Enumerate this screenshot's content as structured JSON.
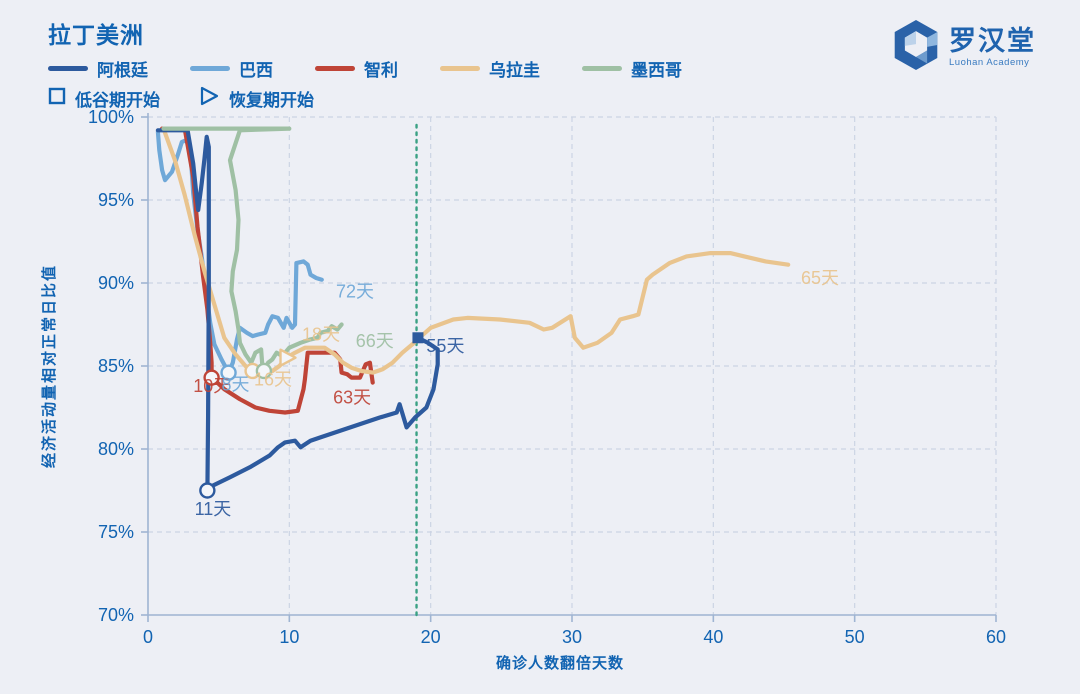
{
  "header": {
    "title": "拉丁美洲",
    "logo": {
      "name": "罗汉堂",
      "subtitle": "Luohan Academy"
    }
  },
  "legend": {
    "series": [
      {
        "label": "阿根廷",
        "color": "#2d5a9e"
      },
      {
        "label": "巴西",
        "color": "#6fa8d8"
      },
      {
        "label": "智利",
        "color": "#bf4437"
      },
      {
        "label": "乌拉圭",
        "color": "#e9c48e"
      },
      {
        "label": "墨西哥",
        "color": "#9fc0a4"
      }
    ],
    "markers": [
      {
        "label": "低谷期开始",
        "shape": "square"
      },
      {
        "label": "恢复期开始",
        "shape": "triangle"
      }
    ]
  },
  "chart_data": {
    "type": "line",
    "title": "拉丁美洲",
    "xlabel": "确诊人数翻倍天数",
    "ylabel": "经济活动量相对正常日比值",
    "xlim": [
      0,
      60
    ],
    "ylim": [
      70,
      100
    ],
    "grid": true,
    "x_ticks": [
      {
        "value": 0,
        "label": "0"
      },
      {
        "value": 10,
        "label": "10"
      },
      {
        "value": 20,
        "label": "20"
      },
      {
        "value": 30,
        "label": "30"
      },
      {
        "value": 40,
        "label": "40"
      },
      {
        "value": 50,
        "label": "50"
      },
      {
        "value": 60,
        "label": "60"
      }
    ],
    "y_ticks": [
      {
        "value": 100,
        "label": "100%"
      },
      {
        "value": 95,
        "label": "95%"
      },
      {
        "value": 90,
        "label": "90%"
      },
      {
        "value": 85,
        "label": "85%"
      },
      {
        "value": 80,
        "label": "80%"
      },
      {
        "value": 75,
        "label": "75%"
      },
      {
        "value": 70,
        "label": "70%"
      }
    ],
    "reference_line": {
      "x": 19,
      "color": "#3aa184",
      "style": "dotted"
    },
    "series": [
      {
        "name": "巴西",
        "color": "#6fa8d8",
        "end_label": "72天",
        "trough_label": "8天",
        "points": [
          [
            0.7,
            99.1
          ],
          [
            0.8,
            98
          ],
          [
            1.0,
            96.8
          ],
          [
            1.2,
            96.2
          ],
          [
            1.7,
            96.7
          ],
          [
            2.1,
            97.7
          ],
          [
            2.4,
            98.5
          ],
          [
            2.7,
            98.6
          ],
          [
            3.0,
            98
          ],
          [
            3.2,
            95.4
          ],
          [
            3.5,
            93.2
          ],
          [
            3.8,
            91.6
          ],
          [
            4.1,
            89.6
          ],
          [
            4.4,
            87.6
          ],
          [
            4.7,
            86.3
          ],
          [
            5.2,
            85.4
          ],
          [
            5.7,
            84.6
          ],
          [
            6.0,
            85.2
          ],
          [
            6.3,
            86.6
          ],
          [
            6.5,
            87.3
          ],
          [
            7.0,
            87.0
          ],
          [
            7.4,
            86.8
          ],
          [
            7.8,
            86.9
          ],
          [
            8.3,
            87.0
          ],
          [
            8.5,
            87.5
          ],
          [
            8.8,
            88.0
          ],
          [
            9.2,
            87.9
          ],
          [
            9.6,
            87.3
          ],
          [
            9.8,
            87.9
          ],
          [
            10.2,
            87.3
          ],
          [
            10.4,
            87.5
          ],
          [
            10.5,
            91.2
          ],
          [
            11.0,
            91.3
          ],
          [
            11.3,
            91.1
          ],
          [
            11.5,
            90.5
          ],
          [
            11.9,
            90.3
          ],
          [
            12.3,
            90.2
          ]
        ]
      },
      {
        "name": "智利",
        "color": "#bf4437",
        "end_label": "63天",
        "trough_label": "10天",
        "points": [
          [
            1.0,
            99.3
          ],
          [
            2.6,
            99.3
          ],
          [
            3.2,
            96.4
          ],
          [
            3.5,
            93.4
          ],
          [
            3.9,
            90.4
          ],
          [
            4.2,
            88.4
          ],
          [
            4.4,
            86.4
          ],
          [
            4.5,
            85.2
          ],
          [
            4.5,
            84.3
          ],
          [
            4.9,
            84.0
          ],
          [
            5.4,
            83.6
          ],
          [
            6.5,
            83.0
          ],
          [
            7.6,
            82.5
          ],
          [
            8.6,
            82.3
          ],
          [
            9.7,
            82.2
          ],
          [
            10.6,
            82.3
          ],
          [
            11.0,
            83.6
          ],
          [
            11.1,
            84.2
          ],
          [
            11.3,
            85.8
          ],
          [
            12.2,
            85.8
          ],
          [
            13.2,
            85.8
          ],
          [
            13.6,
            85.4
          ],
          [
            13.7,
            84.6
          ],
          [
            14.1,
            84.5
          ],
          [
            14.4,
            84.3
          ],
          [
            15.0,
            84.3
          ],
          [
            15.4,
            85.1
          ],
          [
            15.7,
            85.2
          ],
          [
            15.9,
            84.0
          ]
        ]
      },
      {
        "name": "乌拉圭",
        "color": "#e9c48e",
        "end_label": "65天",
        "trough_label": "16天",
        "recovery_label": "18天",
        "points": [
          [
            1.1,
            99.3
          ],
          [
            1.9,
            97.4
          ],
          [
            2.6,
            95.3
          ],
          [
            3.3,
            92.9
          ],
          [
            4.0,
            90.7
          ],
          [
            4.7,
            88.7
          ],
          [
            5.4,
            86.7
          ],
          [
            6.2,
            85.7
          ],
          [
            6.9,
            85.0
          ],
          [
            7.4,
            84.7
          ],
          [
            8.1,
            84.6
          ],
          [
            8.8,
            84.7
          ],
          [
            9.3,
            85.0
          ],
          [
            9.8,
            85.5
          ],
          [
            10.4,
            85.8
          ],
          [
            11.1,
            86.1
          ],
          [
            11.8,
            86.1
          ],
          [
            12.5,
            86.1
          ],
          [
            13.2,
            85.7
          ],
          [
            13.8,
            85.2
          ],
          [
            14.4,
            84.9
          ],
          [
            15.1,
            84.7
          ],
          [
            15.9,
            84.6
          ],
          [
            16.6,
            84.8
          ],
          [
            17.3,
            85.2
          ],
          [
            18.0,
            85.8
          ],
          [
            18.7,
            86.3
          ],
          [
            19.2,
            86.7
          ],
          [
            20.0,
            87.3
          ],
          [
            21.6,
            87.8
          ],
          [
            22.6,
            87.9
          ],
          [
            24.9,
            87.8
          ],
          [
            27.0,
            87.6
          ],
          [
            28.0,
            87.2
          ],
          [
            28.6,
            87.3
          ],
          [
            29.9,
            88.0
          ],
          [
            30.2,
            86.7
          ],
          [
            30.8,
            86.1
          ],
          [
            31.8,
            86.4
          ],
          [
            32.8,
            87.0
          ],
          [
            33.4,
            87.8
          ],
          [
            34.3,
            88.0
          ],
          [
            34.7,
            88.1
          ],
          [
            35.3,
            90.2
          ],
          [
            35.7,
            90.5
          ],
          [
            36.9,
            91.2
          ],
          [
            38.1,
            91.6
          ],
          [
            39.8,
            91.8
          ],
          [
            41.2,
            91.8
          ],
          [
            42.2,
            91.6
          ],
          [
            43.7,
            91.3
          ],
          [
            45.3,
            91.1
          ]
        ]
      },
      {
        "name": "阿根廷",
        "color": "#2d5a9e",
        "end_label": "55天",
        "trough_label": "11天",
        "points": [
          [
            0.7,
            99.2
          ],
          [
            2.8,
            99.2
          ],
          [
            3.2,
            97.2
          ],
          [
            3.4,
            95.5
          ],
          [
            3.55,
            94.4
          ],
          [
            3.8,
            96.0
          ],
          [
            4.0,
            97.5
          ],
          [
            4.15,
            98.8
          ],
          [
            4.3,
            98.2
          ],
          [
            4.3,
            90.0
          ],
          [
            4.25,
            82.0
          ],
          [
            4.2,
            77.5
          ],
          [
            4.6,
            77.8
          ],
          [
            5.8,
            78.3
          ],
          [
            7.2,
            78.9
          ],
          [
            8.6,
            79.6
          ],
          [
            9.2,
            80.1
          ],
          [
            9.7,
            80.4
          ],
          [
            10.4,
            80.5
          ],
          [
            10.8,
            80.1
          ],
          [
            11.5,
            80.5
          ],
          [
            12.2,
            80.7
          ],
          [
            13.6,
            81.1
          ],
          [
            15.0,
            81.5
          ],
          [
            16.4,
            81.9
          ],
          [
            17.6,
            82.2
          ],
          [
            17.8,
            82.7
          ],
          [
            18.3,
            81.3
          ],
          [
            18.9,
            81.9
          ],
          [
            19.7,
            82.5
          ],
          [
            20.2,
            83.6
          ],
          [
            20.5,
            85.1
          ],
          [
            20.5,
            86.0
          ],
          [
            19.8,
            86.4
          ],
          [
            19.1,
            86.7
          ]
        ]
      },
      {
        "name": "墨西哥",
        "color": "#9fc0a4",
        "end_label": "66天",
        "points": [
          [
            1.1,
            99.3
          ],
          [
            10.0,
            99.3
          ],
          [
            6.5,
            99.2
          ],
          [
            5.8,
            97.4
          ],
          [
            6.2,
            95.6
          ],
          [
            6.4,
            93.8
          ],
          [
            6.3,
            92.0
          ],
          [
            6.0,
            90.7
          ],
          [
            5.9,
            89.5
          ],
          [
            6.2,
            88.3
          ],
          [
            6.4,
            87.2
          ],
          [
            6.5,
            86.4
          ],
          [
            6.9,
            85.7
          ],
          [
            7.3,
            85.2
          ],
          [
            7.6,
            85.8
          ],
          [
            8.0,
            86.0
          ],
          [
            8.1,
            84.9
          ],
          [
            8.2,
            84.7
          ],
          [
            8.5,
            85.2
          ],
          [
            8.8,
            85.4
          ],
          [
            9.1,
            85.8
          ],
          [
            9.5,
            85.6
          ],
          [
            10.0,
            86.1
          ],
          [
            10.8,
            86.4
          ],
          [
            11.5,
            86.6
          ],
          [
            12.0,
            86.7
          ],
          [
            12.2,
            87.0
          ],
          [
            12.7,
            87.1
          ],
          [
            13.0,
            87.4
          ],
          [
            13.4,
            87.2
          ],
          [
            13.7,
            87.5
          ]
        ]
      }
    ],
    "markers": [
      {
        "shape": "circle",
        "meaning": "低谷期开始",
        "series": "阿根廷",
        "x": 4.2,
        "y": 77.5
      },
      {
        "shape": "circle",
        "meaning": "低谷期开始",
        "series": "智利",
        "x": 4.5,
        "y": 84.3
      },
      {
        "shape": "circle",
        "meaning": "低谷期开始",
        "series": "巴西",
        "x": 5.7,
        "y": 84.6
      },
      {
        "shape": "circle",
        "meaning": "低谷期开始",
        "series": "乌拉圭",
        "x": 7.4,
        "y": 84.7
      },
      {
        "shape": "circle",
        "meaning": "低谷期开始",
        "series": "墨西哥",
        "x": 8.2,
        "y": 84.7
      },
      {
        "shape": "triangle",
        "meaning": "恢复期开始",
        "series": "乌拉圭",
        "x": 9.8,
        "y": 85.5
      },
      {
        "shape": "square",
        "meaning": "低谷期开始",
        "series": "阿根廷",
        "x": 19.1,
        "y": 86.7
      }
    ],
    "annotations": [
      {
        "text": "11天",
        "x": 3.3,
        "y": 76.4,
        "series": "阿根廷"
      },
      {
        "text": "10天",
        "x": 3.2,
        "y": 83.8,
        "series": "智利"
      },
      {
        "text": "8天",
        "x": 5.2,
        "y": 83.9,
        "series": "巴西"
      },
      {
        "text": "16天",
        "x": 7.5,
        "y": 84.2,
        "series": "乌拉圭"
      },
      {
        "text": "18天",
        "x": 10.9,
        "y": 86.9,
        "series": "乌拉圭"
      },
      {
        "text": "72天",
        "x": 13.3,
        "y": 89.5,
        "series": "巴西"
      },
      {
        "text": "66天",
        "x": 14.7,
        "y": 86.5,
        "series": "墨西哥"
      },
      {
        "text": "63天",
        "x": 13.1,
        "y": 83.1,
        "series": "智利"
      },
      {
        "text": "55天",
        "x": 19.7,
        "y": 86.2,
        "series": "阿根廷"
      },
      {
        "text": "65天",
        "x": 46.2,
        "y": 90.3,
        "series": "乌拉圭"
      }
    ]
  }
}
